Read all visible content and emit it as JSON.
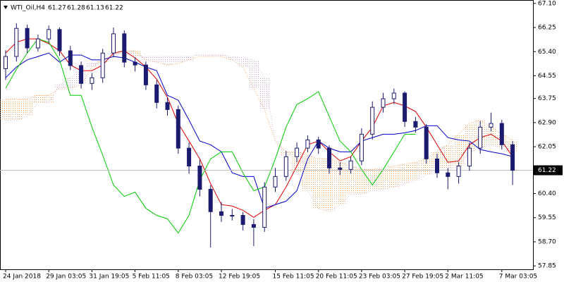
{
  "chart_data": {
    "type": "candlestick",
    "title": "WTI_Oil,H4",
    "header_values": [
      61.27,
      61.28,
      61.13,
      61.22
    ],
    "last_price": 61.22,
    "candle_color": "#1a1a6e",
    "categories": [
      "24 Jan 2018",
      null,
      null,
      null,
      "29 Jan 03:05",
      null,
      null,
      null,
      "31 Jan 19:05",
      null,
      null,
      null,
      "5 Feb 11:05",
      null,
      null,
      null,
      "8 Feb 03:05",
      null,
      null,
      null,
      "12 Feb 19:05",
      null,
      null,
      null,
      null,
      "15 Feb 11:05",
      null,
      null,
      null,
      "20 Feb 11:05",
      null,
      null,
      null,
      "23 Feb 03:05",
      null,
      null,
      null,
      "27 Feb 19:05",
      null,
      null,
      null,
      "2 Mar 11:05",
      null,
      null,
      null,
      null,
      "7 Mar 03:05",
      null
    ],
    "open": [
      64.8,
      65.23,
      66.22,
      65.53,
      65.85,
      66.18,
      65.43,
      64.91,
      64.28,
      64.48,
      65.35,
      66.03,
      65.03,
      64.93,
      64.23,
      63.61,
      63.36,
      62.0,
      61.37,
      60.55,
      59.76,
      59.63,
      59.63,
      59.31,
      59.21,
      60.63,
      61.0,
      61.7,
      62.0,
      62.29,
      62.0,
      61.3,
      61.25,
      61.55,
      62.49,
      63.44,
      63.74,
      63.94,
      62.94,
      62.74,
      61.62,
      61.13,
      61.0,
      61.37,
      62.0,
      62.74,
      62.87,
      62.12
    ],
    "high": [
      65.45,
      66.4,
      66.35,
      66.0,
      66.32,
      66.25,
      65.6,
      65.05,
      64.65,
      65.5,
      66.25,
      66.15,
      65.2,
      65.05,
      64.4,
      63.8,
      63.5,
      62.2,
      61.6,
      60.7,
      60.1,
      59.85,
      59.75,
      59.5,
      60.8,
      61.3,
      61.9,
      62.2,
      62.45,
      62.4,
      62.1,
      61.5,
      61.7,
      62.7,
      63.65,
      63.95,
      64.1,
      64.0,
      63.1,
      62.85,
      61.8,
      61.3,
      61.5,
      62.2,
      62.95,
      63.25,
      63.0,
      62.25
    ],
    "low": [
      64.4,
      65.05,
      65.35,
      65.4,
      65.7,
      65.25,
      64.75,
      64.1,
      64.05,
      64.3,
      65.2,
      64.85,
      64.7,
      64.05,
      63.4,
      63.15,
      61.8,
      61.1,
      60.3,
      58.5,
      59.4,
      59.45,
      59.1,
      58.55,
      59.05,
      60.45,
      60.85,
      61.5,
      61.85,
      61.8,
      61.1,
      61.05,
      61.1,
      61.4,
      62.3,
      63.25,
      63.55,
      62.75,
      62.55,
      61.45,
      60.95,
      60.55,
      60.75,
      61.2,
      61.8,
      62.6,
      61.95,
      60.7
    ],
    "close": [
      65.23,
      66.22,
      65.53,
      65.85,
      66.18,
      65.43,
      64.91,
      64.28,
      64.48,
      65.35,
      66.03,
      65.03,
      64.93,
      64.23,
      63.61,
      63.36,
      62.0,
      61.37,
      60.55,
      59.76,
      59.63,
      59.63,
      59.31,
      59.21,
      60.63,
      61.0,
      61.7,
      62.0,
      62.29,
      62.0,
      61.3,
      61.25,
      61.55,
      62.49,
      63.44,
      63.74,
      63.94,
      62.94,
      62.74,
      61.62,
      61.13,
      61.0,
      61.37,
      62.0,
      62.74,
      62.87,
      62.12,
      61.22
    ],
    "lines": [
      {
        "color": "#e00000",
        "values": [
          65.35,
          65.73,
          65.85,
          65.85,
          65.68,
          65.43,
          64.93,
          64.73,
          64.73,
          64.93,
          65.35,
          65.43,
          65.18,
          64.86,
          64.43,
          63.79,
          62.87,
          62.25,
          61.62,
          60.75,
          60.01,
          59.96,
          59.81,
          59.56,
          59.81,
          60.01,
          60.63,
          61.37,
          62.12,
          62.25,
          61.87,
          61.55,
          61.7,
          62.25,
          62.74,
          63.49,
          63.61,
          63.49,
          63.29,
          62.74,
          62.12,
          61.5,
          61.55,
          62.12,
          62.37,
          62.49,
          62.25,
          61.7
        ]
      },
      {
        "color": "#0000cc",
        "values": [
          64.48,
          64.86,
          65.11,
          65.23,
          65.35,
          65.03,
          65.28,
          65.28,
          65.11,
          65.11,
          65.23,
          65.18,
          65.03,
          64.86,
          64.73,
          63.86,
          63.69,
          62.99,
          62.25,
          62.12,
          61.87,
          61.13,
          61.0,
          61.0,
          59.88,
          60.01,
          60.13,
          60.5,
          61.62,
          62.25,
          62.0,
          61.87,
          61.87,
          62.25,
          62.37,
          62.49,
          62.49,
          62.54,
          62.62,
          62.79,
          62.79,
          62.37,
          62.29,
          62.25,
          61.95,
          61.87,
          61.8,
          61.7
        ]
      },
      {
        "color": "#00cc00",
        "values": [
          64.11,
          64.78,
          65.35,
          65.85,
          65.73,
          65.11,
          63.86,
          63.86,
          62.74,
          61.75,
          60.7,
          60.3,
          60.45,
          59.88,
          59.63,
          59.51,
          59.01,
          59.63,
          60.88,
          61.62,
          61.87,
          61.87,
          61.13,
          60.5,
          60.63,
          61.62,
          62.74,
          63.54,
          63.74,
          63.99,
          63.12,
          62.25,
          61.87,
          61.25,
          60.7,
          61.25,
          61.87,
          62.49,
          62.49,
          null,
          null,
          null,
          null,
          null,
          null,
          null,
          null,
          null
        ]
      }
    ],
    "cloud": {
      "span_a": {
        "color": "#f4a460",
        "values": [
          63.74,
          63.74,
          63.74,
          63.86,
          63.86,
          64.11,
          64.11,
          64.23,
          64.86,
          65.11,
          65.28,
          65.43,
          65.43,
          65.11,
          65.03,
          64.93,
          64.98,
          65.11,
          65.23,
          65.23,
          65.23,
          65.11,
          64.86,
          64.11,
          63.36,
          62.24,
          61.87,
          61.87,
          61.75,
          61.62,
          61.62,
          61.5,
          61.37,
          61.25,
          61.25,
          61.3,
          61.37,
          61.45,
          61.5,
          61.62,
          61.87,
          62.12,
          62.49,
          62.87,
          62.99,
          62.74,
          62.49,
          62.29
        ]
      },
      "span_b": {
        "color": "#d8bfd8",
        "values": [
          62.99,
          62.99,
          63.12,
          63.61,
          63.61,
          64.23,
          64.48,
          64.73,
          64.98,
          64.98,
          65.35,
          65.35,
          65.23,
          65.23,
          65.23,
          65.23,
          65.23,
          65.23,
          65.28,
          65.28,
          65.28,
          65.23,
          65.18,
          65.11,
          64.48,
          62.24,
          61.75,
          61.13,
          60.5,
          59.88,
          59.76,
          60.01,
          60.38,
          60.38,
          60.5,
          60.55,
          60.63,
          60.75,
          60.88,
          61.05,
          61.25,
          61.25,
          61.37,
          61.87,
          62.0,
          62.12,
          62.0,
          61.87
        ]
      }
    },
    "ylim": [
      57.73,
      67.22
    ],
    "yticks": [
      {
        "value": 67.1,
        "label": "67.10"
      },
      66.25,
      {
        "value": 65.4,
        "label": "65.40"
      },
      64.55,
      63.75,
      {
        "value": 62.9,
        "label": "62.90"
      },
      62.05,
      {
        "value": 60.4,
        "label": "60.40"
      },
      59.55,
      {
        "value": 58.7,
        "label": "58.70"
      },
      57.85
    ]
  }
}
